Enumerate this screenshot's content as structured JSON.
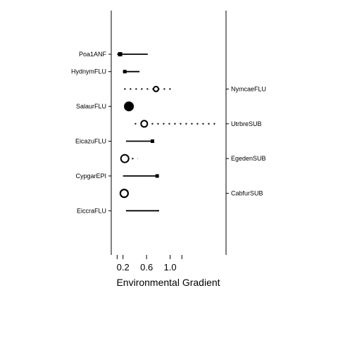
{
  "chart_data": {
    "type": "scatter",
    "title": "",
    "xlabel": "Environmental Gradient",
    "ylabel": "",
    "xlim": [
      0.0,
      1.95
    ],
    "xticks": [
      "0.2",
      "0.6",
      "1.0"
    ],
    "xtick_values": [
      0.2,
      0.6,
      1.0
    ],
    "grid": false,
    "legend": "none",
    "style": {
      "positive_line": "solid",
      "negative_line": "dotted",
      "color": "#000000"
    },
    "taxa": [
      {
        "name": "Poa1ANF",
        "side": "left",
        "response": "positive",
        "value": 0.15,
        "low": 0.1,
        "high": 0.62,
        "size": 3.0
      },
      {
        "name": "HydnymFLU",
        "side": "left",
        "response": "positive",
        "value": 0.23,
        "low": 0.2,
        "high": 0.48,
        "size": 2.5
      },
      {
        "name": "NymcaeFLU",
        "side": "right",
        "response": "negative",
        "value": 0.76,
        "low": 0.22,
        "high": 1.05,
        "size": 3.5
      },
      {
        "name": "SalaurFLU",
        "side": "left",
        "response": "positive",
        "value": 0.3,
        "low": 0.26,
        "high": 0.34,
        "size": 6.5
      },
      {
        "name": "UtrbreSUB",
        "side": "right",
        "response": "negative",
        "value": 0.56,
        "low": 0.4,
        "high": 1.78,
        "size": 4.5
      },
      {
        "name": "EicazuFLU",
        "side": "left",
        "response": "positive",
        "value": 0.7,
        "low": 0.25,
        "high": 0.7,
        "size": 2.5
      },
      {
        "name": "EgedenSUB",
        "side": "right",
        "response": "negative",
        "value": 0.23,
        "low": 0.16,
        "high": 0.45,
        "size": 5.5
      },
      {
        "name": "CypgarEPI",
        "side": "left",
        "response": "positive",
        "value": 0.78,
        "low": 0.2,
        "high": 0.78,
        "size": 2.5
      },
      {
        "name": "CabfurSUB",
        "side": "right",
        "response": "positive",
        "value": 0.22,
        "low": 0.2,
        "high": 0.25,
        "size": 5.5
      },
      {
        "name": "EiccraFLU",
        "side": "left",
        "response": "positive",
        "value": 0.8,
        "low": 0.25,
        "high": 0.8,
        "size": 1.0
      }
    ]
  }
}
